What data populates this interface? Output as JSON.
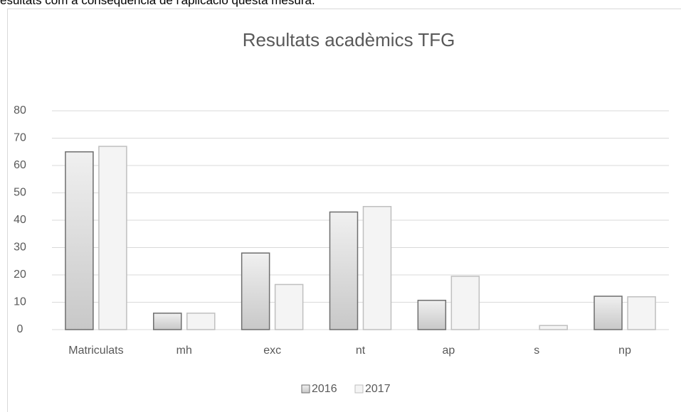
{
  "intro_text": "esultats com a conseqüència de l'aplicació questa mesura.",
  "chart_data": {
    "type": "bar",
    "title": "Resultats acadèmics TFG",
    "categories": [
      "Matriculats",
      "mh",
      "exc",
      "nt",
      "ap",
      "s",
      "np"
    ],
    "series": [
      {
        "name": "2016",
        "color": "#d4d4d4",
        "values": [
          65,
          6,
          28,
          43,
          10.7,
          0,
          12.2
        ]
      },
      {
        "name": "2017",
        "color": "#f4f4f4",
        "values": [
          67,
          6,
          16.5,
          45,
          19.5,
          1.5,
          12
        ]
      }
    ],
    "ylim": [
      0,
      80
    ],
    "yticks": [
      0,
      10,
      20,
      30,
      40,
      50,
      60,
      70,
      80
    ],
    "grid": true,
    "legend": "bottom"
  }
}
